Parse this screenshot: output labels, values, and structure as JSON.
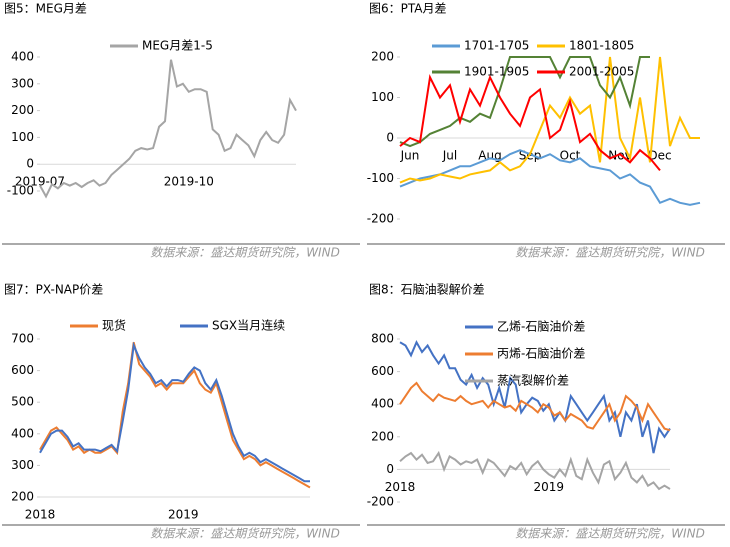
{
  "chart_data": [
    {
      "type": "line",
      "title": "图5：MEG月差",
      "source": "数据来源：盛达期货研究院，WIND",
      "categories": [
        "2019-07",
        null,
        null,
        null,
        null,
        null,
        null,
        null,
        null,
        null,
        null,
        null,
        null,
        null,
        null,
        null,
        null,
        null,
        null,
        null,
        null,
        null,
        null,
        null,
        null,
        "2019-10",
        null,
        null,
        null,
        null,
        null,
        null,
        null,
        null,
        null,
        null,
        null,
        null,
        null,
        null,
        null,
        null,
        null,
        null
      ],
      "series": [
        {
          "name": "MEG月差1-5",
          "color": "#a5a5a5",
          "values": [
            -80,
            -120,
            -75,
            -90,
            -70,
            -80,
            -70,
            -85,
            -70,
            -60,
            -80,
            -70,
            -40,
            -20,
            0,
            20,
            50,
            60,
            55,
            60,
            140,
            160,
            390,
            290,
            300,
            270,
            280,
            280,
            270,
            130,
            110,
            50,
            60,
            110,
            90,
            70,
            30,
            90,
            120,
            90,
            80,
            110,
            240,
            200
          ]
        }
      ],
      "ylim": [
        -150,
        450
      ],
      "yticks": [
        -100,
        0,
        100,
        200,
        300,
        400
      ]
    },
    {
      "type": "line",
      "title": "图6：PTA月差",
      "source": "数据来源：盛达期货研究院，WIND",
      "categories": [
        null,
        "Jun",
        null,
        null,
        null,
        "Jul",
        null,
        null,
        null,
        "Aug",
        null,
        null,
        null,
        "Sep",
        null,
        null,
        null,
        "Oct",
        null,
        null,
        null,
        null,
        "Nov",
        null,
        null,
        null,
        "Dec",
        null,
        null,
        null,
        null
      ],
      "series": [
        {
          "name": "1701-1705",
          "color": "#5b9bd5",
          "values": [
            -120,
            -110,
            -100,
            -95,
            -90,
            -80,
            -70,
            -70,
            -60,
            -50,
            -55,
            -40,
            -30,
            -40,
            -50,
            -40,
            -55,
            -60,
            -50,
            -70,
            -75,
            -80,
            -100,
            -90,
            -110,
            -120,
            -160,
            -150,
            -160,
            -165,
            -160
          ]
        },
        {
          "name": "1801-1805",
          "color": "#ffc000",
          "values": [
            -110,
            -100,
            -105,
            -100,
            -90,
            -95,
            -100,
            -90,
            -85,
            -80,
            -60,
            -80,
            -70,
            -40,
            20,
            80,
            50,
            100,
            60,
            80,
            -60,
            200,
            0,
            -50,
            100,
            -60,
            200,
            -20,
            50,
            0,
            0
          ]
        },
        {
          "name": "1901-1905",
          "color": "#548235",
          "values": [
            -10,
            -20,
            -10,
            10,
            20,
            30,
            50,
            40,
            60,
            50,
            120,
            200,
            200,
            200,
            200,
            200,
            150,
            200,
            200,
            200,
            130,
            100,
            150,
            80,
            200,
            200,
            null,
            null,
            null,
            null,
            null
          ]
        },
        {
          "name": "2001-2005",
          "color": "#ff0000",
          "values": [
            -20,
            0,
            -10,
            150,
            100,
            130,
            40,
            120,
            80,
            150,
            100,
            60,
            30,
            100,
            120,
            0,
            20,
            90,
            -10,
            10,
            -30,
            -50,
            -40,
            -60,
            -30,
            -50,
            -80,
            null,
            null,
            null,
            null
          ]
        }
      ],
      "ylim": [
        -200,
        200
      ],
      "yticks": [
        -200,
        -100,
        0,
        100,
        200
      ]
    },
    {
      "type": "line",
      "title": "图7：PX-NAP价差",
      "source": "数据来源：盛达期货研究院，WIND",
      "categories": [
        "2018",
        null,
        null,
        null,
        null,
        null,
        null,
        null,
        null,
        null,
        null,
        null,
        null,
        null,
        null,
        null,
        null,
        null,
        null,
        null,
        null,
        null,
        null,
        null,
        null,
        null,
        "2019",
        null,
        null,
        null,
        null,
        null,
        null,
        null,
        null,
        null,
        null,
        null,
        null,
        null,
        null,
        null,
        null,
        null,
        null,
        null,
        null,
        null,
        null,
        null
      ],
      "series": [
        {
          "name": "现货",
          "color": "#ed7d31",
          "values": [
            350,
            380,
            410,
            420,
            400,
            380,
            350,
            360,
            340,
            350,
            340,
            340,
            350,
            360,
            340,
            470,
            560,
            690,
            620,
            600,
            580,
            550,
            560,
            540,
            560,
            560,
            560,
            580,
            600,
            560,
            540,
            530,
            560,
            500,
            440,
            380,
            350,
            320,
            330,
            320,
            300,
            310,
            300,
            290,
            280,
            270,
            260,
            250,
            240,
            230
          ]
        },
        {
          "name": "SGX当月连续",
          "color": "#4472c4",
          "values": [
            340,
            370,
            400,
            410,
            410,
            390,
            360,
            370,
            350,
            350,
            350,
            345,
            355,
            365,
            345,
            440,
            540,
            680,
            640,
            610,
            590,
            560,
            570,
            550,
            570,
            570,
            565,
            590,
            610,
            600,
            560,
            540,
            570,
            520,
            460,
            400,
            360,
            330,
            340,
            330,
            310,
            320,
            310,
            300,
            290,
            280,
            270,
            260,
            250,
            250
          ]
        }
      ],
      "ylim": [
        200,
        700
      ],
      "yticks": [
        200,
        300,
        400,
        500,
        600,
        700
      ]
    },
    {
      "type": "line",
      "title": "图8：石脑油裂解价差",
      "source": "数据来源：盛达期货研究院，WIND",
      "categories": [
        "2018",
        null,
        null,
        null,
        null,
        null,
        null,
        null,
        null,
        null,
        null,
        null,
        null,
        null,
        null,
        null,
        null,
        null,
        null,
        null,
        null,
        null,
        null,
        null,
        null,
        null,
        null,
        "2019",
        null,
        null,
        null,
        null,
        null,
        null,
        null,
        null,
        null,
        null,
        null,
        null,
        null,
        null,
        null,
        null,
        null,
        null,
        null,
        null,
        null,
        null
      ],
      "series": [
        {
          "name": "乙烯-石脑油价差",
          "color": "#4472c4",
          "values": [
            780,
            760,
            700,
            780,
            720,
            760,
            700,
            650,
            700,
            620,
            620,
            550,
            520,
            580,
            500,
            560,
            520,
            400,
            500,
            380,
            560,
            520,
            350,
            400,
            440,
            420,
            360,
            400,
            300,
            350,
            300,
            450,
            400,
            350,
            300,
            350,
            400,
            450,
            300,
            350,
            200,
            350,
            300,
            400,
            200,
            300,
            100,
            250,
            200,
            250
          ]
        },
        {
          "name": "丙烯-石脑油价差",
          "color": "#ed7d31",
          "values": [
            400,
            450,
            500,
            530,
            480,
            450,
            420,
            460,
            440,
            430,
            420,
            450,
            420,
            400,
            410,
            420,
            380,
            420,
            400,
            380,
            390,
            360,
            420,
            400,
            380,
            350,
            400,
            380,
            330,
            350,
            300,
            340,
            320,
            300,
            260,
            250,
            300,
            350,
            400,
            300,
            350,
            450,
            420,
            380,
            300,
            400,
            350,
            300,
            250,
            240
          ]
        },
        {
          "name": "蒸汽裂解价差",
          "color": "#a5a5a5",
          "values": [
            50,
            80,
            100,
            60,
            90,
            40,
            50,
            100,
            0,
            80,
            60,
            30,
            50,
            40,
            60,
            -20,
            60,
            40,
            0,
            -40,
            20,
            0,
            40,
            -30,
            20,
            50,
            0,
            -30,
            -50,
            0,
            -40,
            60,
            -40,
            -60,
            60,
            -20,
            -80,
            30,
            50,
            -60,
            -20,
            40,
            -50,
            -80,
            -40,
            -100,
            -80,
            -120,
            -100,
            -120
          ]
        }
      ],
      "ylim": [
        -200,
        800
      ],
      "yticks": [
        -200,
        0,
        200,
        400,
        600,
        800
      ]
    }
  ]
}
